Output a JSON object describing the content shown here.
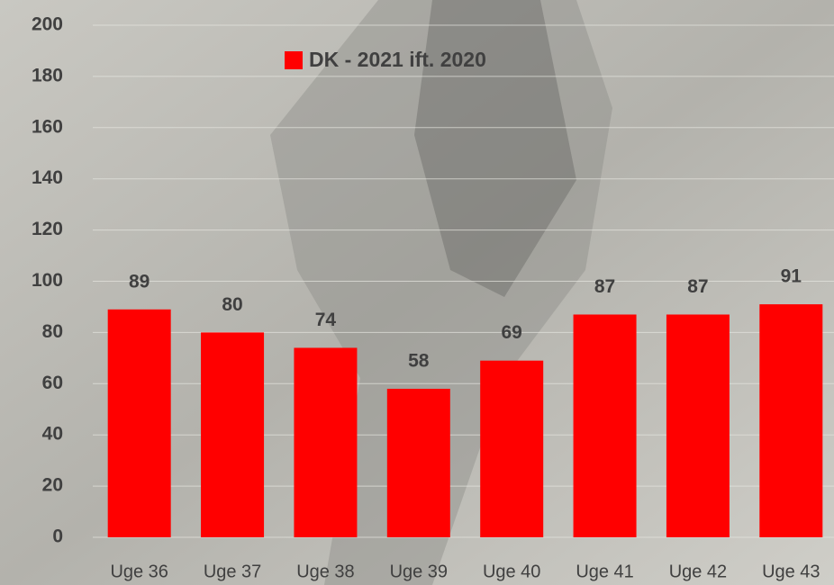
{
  "chart_data": {
    "type": "bar",
    "categories": [
      "Uge 36",
      "Uge 37",
      "Uge 38",
      "Uge 39",
      "Uge 40",
      "Uge 41",
      "Uge 42",
      "Uge 43"
    ],
    "series": [
      {
        "name": "DK - 2021 ift. 2020",
        "color": "#ff0000",
        "values": [
          89,
          80,
          74,
          58,
          69,
          87,
          87,
          91
        ]
      }
    ],
    "ylim": [
      0,
      200
    ],
    "yticks": [
      0,
      20,
      40,
      60,
      80,
      100,
      120,
      140,
      160,
      180,
      200
    ],
    "grid": true,
    "legend": "top"
  }
}
